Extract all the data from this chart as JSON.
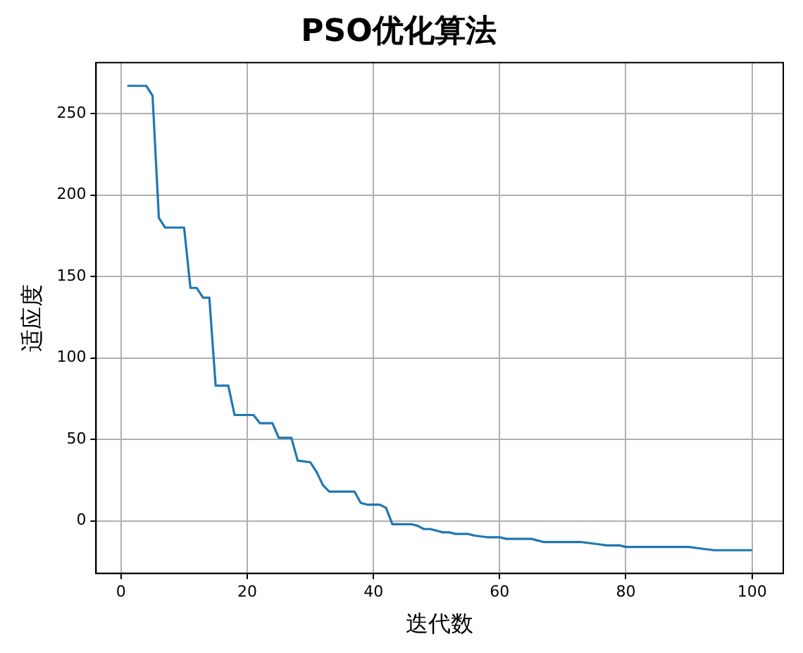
{
  "chart_data": {
    "type": "line",
    "title": "PSO优化算法",
    "xlabel": "迭代数",
    "ylabel": "适应度",
    "x": [
      1,
      4,
      5,
      6,
      7,
      10,
      11,
      12,
      13,
      14,
      15,
      17,
      18,
      21,
      22,
      24,
      25,
      27,
      28,
      30,
      31,
      32,
      33,
      37,
      38,
      39,
      41,
      42,
      43,
      46,
      47,
      48,
      49,
      50,
      51,
      52,
      53,
      55,
      56,
      58,
      60,
      61,
      65,
      66,
      67,
      73,
      75,
      77,
      79,
      80,
      90,
      92,
      94,
      99,
      100
    ],
    "series": [
      {
        "color": "#1f77b4",
        "values": [
          267,
          267,
          261,
          186,
          180,
          180,
          143,
          143,
          137,
          137,
          83,
          83,
          65,
          65,
          60,
          60,
          51,
          51,
          37,
          36,
          30,
          22,
          18,
          18,
          11,
          10,
          10,
          8,
          -2,
          -2,
          -3,
          -5,
          -5,
          -6,
          -7,
          -7,
          -8,
          -8,
          -9,
          -10,
          -10,
          -11,
          -11,
          -12,
          -13,
          -13,
          -14,
          -15,
          -15,
          -16,
          -16,
          -17,
          -18,
          -18,
          -18
        ]
      }
    ],
    "xlim": [
      -3.95,
      104.95
    ],
    "ylim": [
      -32.25,
      281.25
    ],
    "xticks": [
      0,
      20,
      40,
      60,
      80,
      100
    ],
    "yticks": [
      0,
      50,
      100,
      150,
      200,
      250
    ],
    "grid": true,
    "legend": false,
    "marker": "none",
    "line_style": "solid"
  }
}
